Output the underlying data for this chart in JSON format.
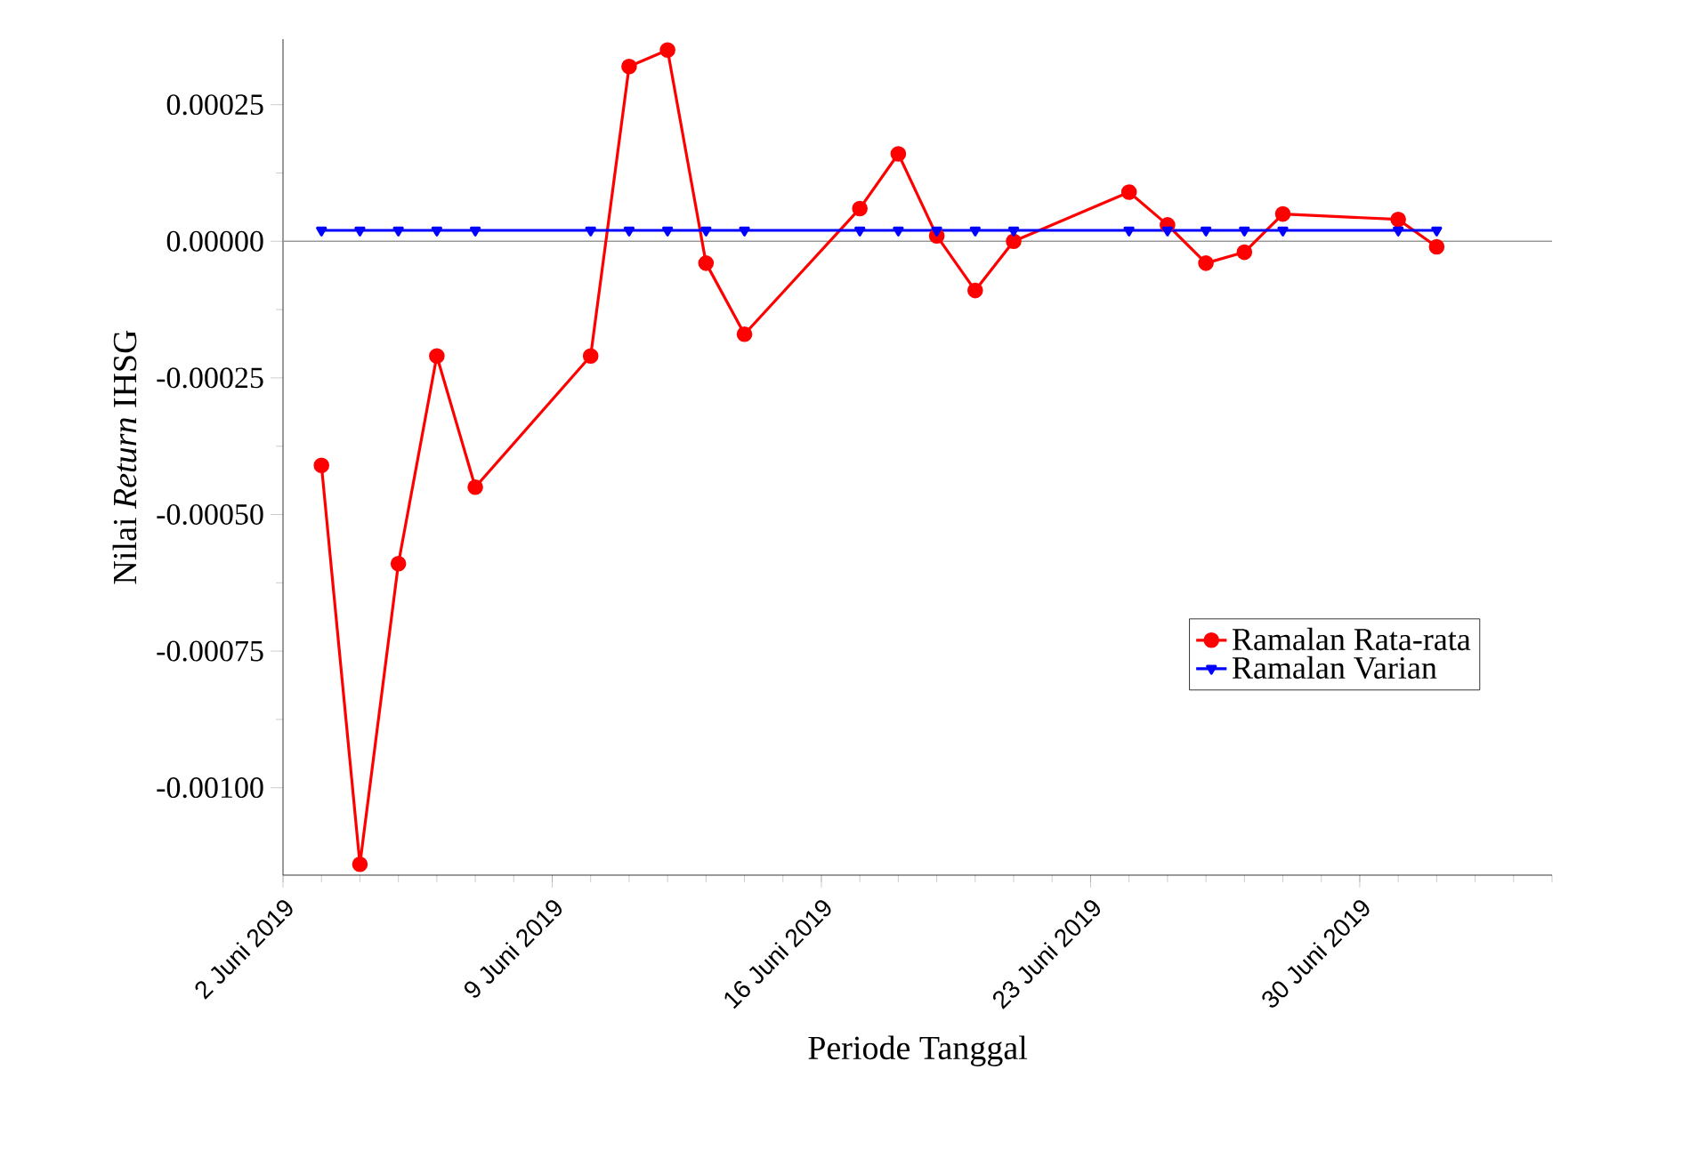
{
  "chart_data": {
    "type": "line",
    "xlabel": "Periode Tanggal",
    "ylabel": "Nilai *Return* IHSG",
    "x": [
      "2019-06-03",
      "2019-06-04",
      "2019-06-05",
      "2019-06-06",
      "2019-06-07",
      "2019-06-10",
      "2019-06-11",
      "2019-06-12",
      "2019-06-13",
      "2019-06-14",
      "2019-06-17",
      "2019-06-18",
      "2019-06-19",
      "2019-06-20",
      "2019-06-21",
      "2019-06-24",
      "2019-06-25",
      "2019-06-26",
      "2019-06-27",
      "2019-06-28",
      "2019-07-01",
      "2019-07-02"
    ],
    "series": [
      {
        "name": "Ramalan Rata-rata",
        "color": "#ff0000",
        "marker": "circle",
        "values": [
          -0.00041,
          -0.00114,
          -0.00059,
          -0.00021,
          -0.00045,
          -0.00021,
          0.00032,
          0.00035,
          -4e-05,
          -0.00017,
          6e-05,
          0.00016,
          1e-05,
          -9e-05,
          0.0,
          9e-05,
          3e-05,
          -4e-05,
          -2e-05,
          5e-05,
          4e-05,
          -1e-05
        ]
      },
      {
        "name": "Ramalan Varian",
        "color": "#0000ff",
        "marker": "triangle",
        "values": [
          2e-05,
          2e-05,
          2e-05,
          2e-05,
          2e-05,
          2e-05,
          2e-05,
          2e-05,
          2e-05,
          2e-05,
          2e-05,
          2e-05,
          2e-05,
          2e-05,
          2e-05,
          2e-05,
          2e-05,
          2e-05,
          2e-05,
          2e-05,
          2e-05,
          2e-05
        ]
      }
    ],
    "xlim": [
      "2019-06-02",
      "2019-07-05"
    ],
    "xticks": [
      {
        "value": "2019-06-02",
        "label": "2 Juni 2019"
      },
      {
        "value": "2019-06-09",
        "label": "9 Juni 2019"
      },
      {
        "value": "2019-06-16",
        "label": "16 Juni 2019"
      },
      {
        "value": "2019-06-23",
        "label": "23 Juni 2019"
      },
      {
        "value": "2019-06-30",
        "label": "30 Juni 2019"
      }
    ],
    "ylim": [
      -0.00116,
      0.00037
    ],
    "yticks": [
      {
        "value": 0.00025,
        "label": "0.00025"
      },
      {
        "value": 0,
        "label": "0.00000"
      },
      {
        "value": -0.00025,
        "label": "-0.00025"
      },
      {
        "value": -0.0005,
        "label": "-0.00050"
      },
      {
        "value": -0.00075,
        "label": "-0.00075"
      },
      {
        "value": -0.001,
        "label": "-0.00100"
      }
    ],
    "ref_lines": [
      {
        "axis": "y",
        "value": 0,
        "color": "#999999"
      }
    ],
    "legend": "right",
    "grid": false,
    "line_style": "solid"
  }
}
